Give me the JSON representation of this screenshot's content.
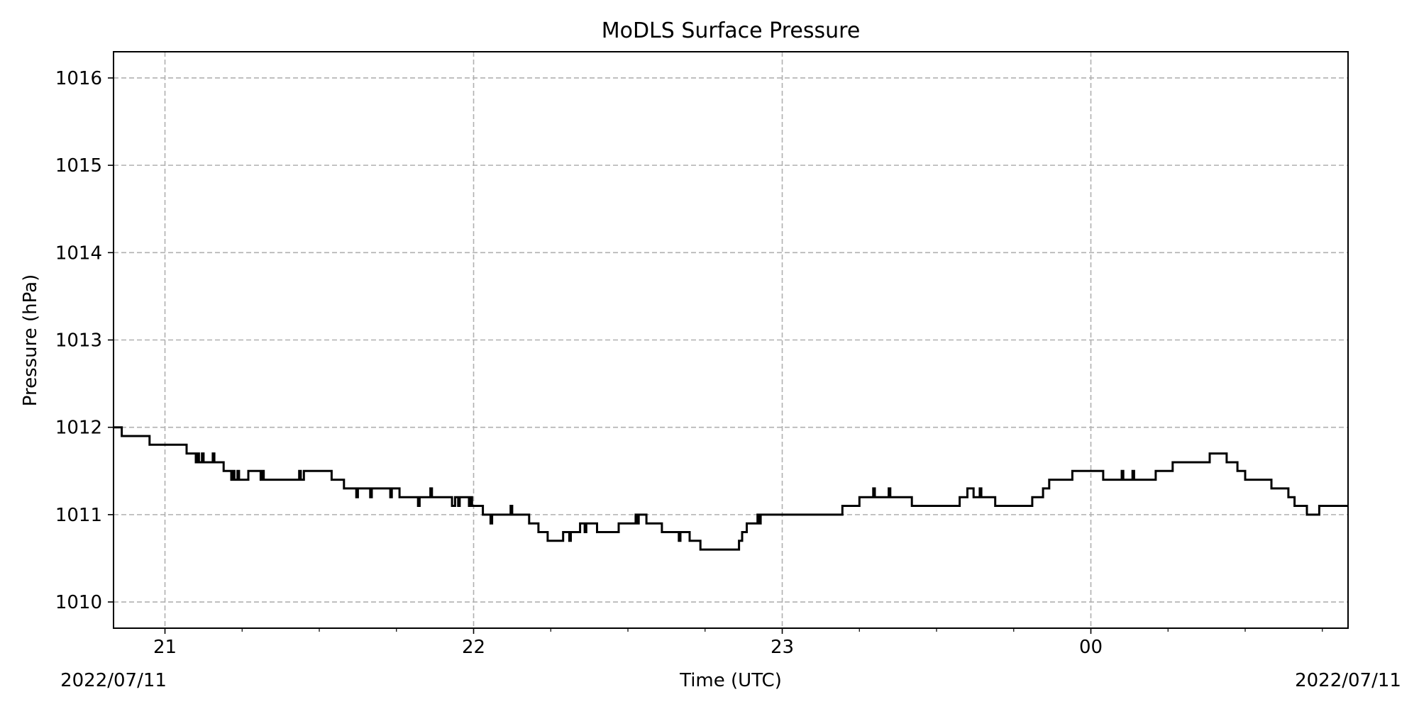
{
  "chart_data": {
    "type": "line",
    "title": "MoDLS Surface Pressure",
    "xlabel": "Time (UTC)",
    "ylabel": "Pressure (hPa)",
    "x_unit": "hours since 21:00 UTC",
    "xlim": [
      -0.1667,
      3.8333
    ],
    "ylim": [
      1009.7,
      1016.3
    ],
    "yticks": [
      1010,
      1011,
      1012,
      1013,
      1014,
      1015,
      1016
    ],
    "xticks": [
      {
        "x": 0,
        "label": "21"
      },
      {
        "x": 1,
        "label": "22"
      },
      {
        "x": 2,
        "label": "23"
      },
      {
        "x": 3,
        "label": "00"
      }
    ],
    "x_minor_ticks": [
      0.25,
      0.5,
      0.75,
      1.25,
      1.5,
      1.75,
      2.25,
      2.5,
      2.75,
      3.25,
      3.5,
      3.75
    ],
    "date_labels": {
      "left": "2022/07/11",
      "right": "2022/07/11"
    },
    "grid": true,
    "series_color": "#000000",
    "series": [
      {
        "style": "step",
        "points": [
          [
            -0.1667,
            1012.0
          ],
          [
            -0.14,
            1011.9
          ],
          [
            -0.05,
            1011.8
          ],
          [
            0.07,
            1011.7
          ],
          [
            0.1,
            1011.6
          ],
          [
            0.105,
            1011.7
          ],
          [
            0.11,
            1011.6
          ],
          [
            0.12,
            1011.7
          ],
          [
            0.125,
            1011.6
          ],
          [
            0.15,
            1011.6
          ],
          [
            0.155,
            1011.7
          ],
          [
            0.16,
            1011.6
          ],
          [
            0.19,
            1011.5
          ],
          [
            0.215,
            1011.4
          ],
          [
            0.22,
            1011.5
          ],
          [
            0.225,
            1011.4
          ],
          [
            0.235,
            1011.5
          ],
          [
            0.24,
            1011.4
          ],
          [
            0.27,
            1011.5
          ],
          [
            0.31,
            1011.4
          ],
          [
            0.315,
            1011.5
          ],
          [
            0.32,
            1011.4
          ],
          [
            0.435,
            1011.5
          ],
          [
            0.44,
            1011.4
          ],
          [
            0.45,
            1011.5
          ],
          [
            0.54,
            1011.4
          ],
          [
            0.58,
            1011.3
          ],
          [
            0.62,
            1011.2
          ],
          [
            0.625,
            1011.3
          ],
          [
            0.665,
            1011.2
          ],
          [
            0.67,
            1011.3
          ],
          [
            0.73,
            1011.2
          ],
          [
            0.735,
            1011.3
          ],
          [
            0.76,
            1011.2
          ],
          [
            0.82,
            1011.1
          ],
          [
            0.825,
            1011.2
          ],
          [
            0.86,
            1011.3
          ],
          [
            0.865,
            1011.2
          ],
          [
            0.93,
            1011.1
          ],
          [
            0.94,
            1011.2
          ],
          [
            0.95,
            1011.1
          ],
          [
            0.955,
            1011.2
          ],
          [
            0.985,
            1011.1
          ],
          [
            0.99,
            1011.2
          ],
          [
            0.995,
            1011.1
          ],
          [
            1.03,
            1011.0
          ],
          [
            1.055,
            1010.9
          ],
          [
            1.06,
            1011.0
          ],
          [
            1.12,
            1011.1
          ],
          [
            1.125,
            1011.0
          ],
          [
            1.18,
            1010.9
          ],
          [
            1.21,
            1010.8
          ],
          [
            1.24,
            1010.7
          ],
          [
            1.29,
            1010.8
          ],
          [
            1.31,
            1010.7
          ],
          [
            1.315,
            1010.8
          ],
          [
            1.345,
            1010.9
          ],
          [
            1.36,
            1010.8
          ],
          [
            1.365,
            1010.9
          ],
          [
            1.4,
            1010.8
          ],
          [
            1.47,
            1010.9
          ],
          [
            1.525,
            1011.0
          ],
          [
            1.53,
            1010.9
          ],
          [
            1.535,
            1011.0
          ],
          [
            1.56,
            1010.9
          ],
          [
            1.61,
            1010.8
          ],
          [
            1.665,
            1010.7
          ],
          [
            1.67,
            1010.8
          ],
          [
            1.7,
            1010.7
          ],
          [
            1.735,
            1010.6
          ],
          [
            1.86,
            1010.7
          ],
          [
            1.87,
            1010.8
          ],
          [
            1.885,
            1010.9
          ],
          [
            1.92,
            1011.0
          ],
          [
            1.925,
            1010.9
          ],
          [
            1.93,
            1011.0
          ],
          [
            2.195,
            1011.1
          ],
          [
            2.25,
            1011.2
          ],
          [
            2.295,
            1011.3
          ],
          [
            2.3,
            1011.2
          ],
          [
            2.345,
            1011.3
          ],
          [
            2.35,
            1011.2
          ],
          [
            2.42,
            1011.1
          ],
          [
            2.575,
            1011.2
          ],
          [
            2.6,
            1011.3
          ],
          [
            2.62,
            1011.2
          ],
          [
            2.64,
            1011.3
          ],
          [
            2.645,
            1011.2
          ],
          [
            2.69,
            1011.1
          ],
          [
            2.81,
            1011.2
          ],
          [
            2.845,
            1011.3
          ],
          [
            2.865,
            1011.4
          ],
          [
            2.94,
            1011.5
          ],
          [
            3.04,
            1011.4
          ],
          [
            3.1,
            1011.5
          ],
          [
            3.105,
            1011.4
          ],
          [
            3.135,
            1011.5
          ],
          [
            3.14,
            1011.4
          ],
          [
            3.21,
            1011.5
          ],
          [
            3.265,
            1011.6
          ],
          [
            3.385,
            1011.7
          ],
          [
            3.44,
            1011.6
          ],
          [
            3.475,
            1011.5
          ],
          [
            3.5,
            1011.4
          ],
          [
            3.585,
            1011.3
          ],
          [
            3.64,
            1011.2
          ],
          [
            3.66,
            1011.1
          ],
          [
            3.7,
            1011.0
          ],
          [
            3.74,
            1011.1
          ],
          [
            3.8333,
            1011.1
          ]
        ]
      }
    ]
  }
}
